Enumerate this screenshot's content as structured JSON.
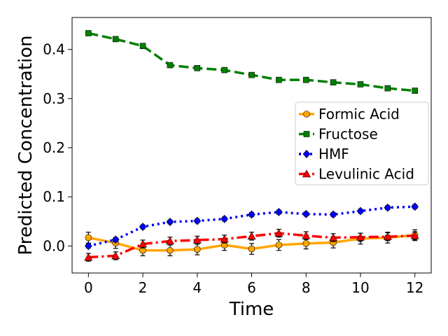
{
  "chart_data": {
    "type": "line",
    "title": "",
    "xlabel": "Time",
    "ylabel": "Predicted Concentration",
    "xlim": [
      -0.6,
      12.6
    ],
    "ylim": [
      -0.055,
      0.465
    ],
    "x": [
      0,
      1,
      2,
      3,
      4,
      5,
      6,
      7,
      8,
      9,
      10,
      11,
      12
    ],
    "xticks": [
      "0",
      "2",
      "4",
      "6",
      "8",
      "10",
      "12"
    ],
    "yticks": [
      "0.0",
      "0.1",
      "0.2",
      "0.3",
      "0.4"
    ],
    "grid": false,
    "legend_position": "center-right",
    "series": [
      {
        "name": "Formic Acid",
        "color": "#ffa500",
        "marker": "circle",
        "linestyle": "solid",
        "values": [
          0.017,
          0.006,
          -0.009,
          -0.009,
          -0.007,
          0.002,
          -0.006,
          0.002,
          0.005,
          0.007,
          0.015,
          0.017,
          0.022
        ],
        "errors": [
          0.011,
          0.011,
          0.011,
          0.011,
          0.011,
          0.011,
          0.011,
          0.011,
          0.011,
          0.011,
          0.011,
          0.011,
          0.011
        ]
      },
      {
        "name": "Fructose",
        "color": "#008000",
        "marker": "square",
        "linestyle": "dashed",
        "values": [
          0.433,
          0.421,
          0.407,
          0.368,
          0.362,
          0.358,
          0.348,
          0.338,
          0.338,
          0.333,
          0.329,
          0.321,
          0.316
        ],
        "errors": [
          0.004,
          0.004,
          0.004,
          0.004,
          0.004,
          0.004,
          0.004,
          0.004,
          0.004,
          0.004,
          0.004,
          0.004,
          0.004
        ]
      },
      {
        "name": "HMF",
        "color": "#0000ff",
        "marker": "diamond",
        "linestyle": "dotted",
        "values": [
          0.0,
          0.013,
          0.039,
          0.049,
          0.051,
          0.055,
          0.064,
          0.069,
          0.065,
          0.064,
          0.071,
          0.078,
          0.08
        ],
        "errors": [
          0.004,
          0.004,
          0.004,
          0.004,
          0.004,
          0.004,
          0.004,
          0.004,
          0.004,
          0.004,
          0.004,
          0.004,
          0.004
        ]
      },
      {
        "name": "Levulinic Acid",
        "color": "#ff0000",
        "marker": "triangle",
        "linestyle": "dashdot",
        "values": [
          -0.023,
          -0.02,
          0.004,
          0.01,
          0.012,
          0.014,
          0.02,
          0.026,
          0.021,
          0.017,
          0.018,
          0.019,
          0.021
        ],
        "errors": [
          0.008,
          0.008,
          0.008,
          0.008,
          0.008,
          0.008,
          0.008,
          0.008,
          0.008,
          0.008,
          0.008,
          0.008,
          0.008
        ]
      }
    ]
  }
}
